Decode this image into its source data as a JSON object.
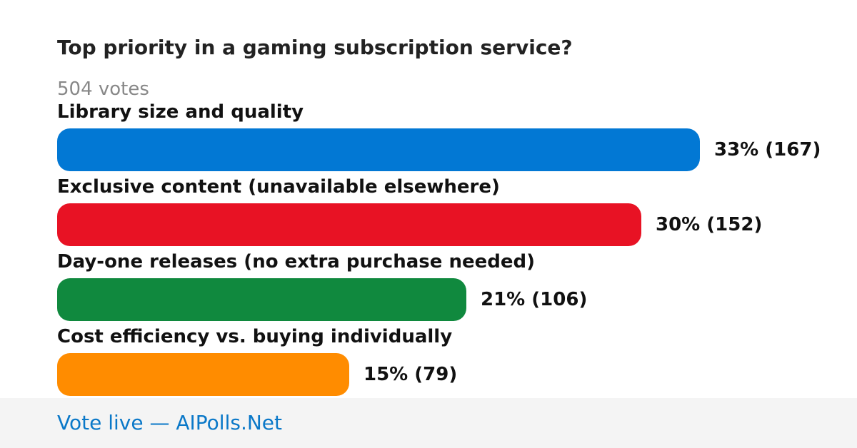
{
  "poll": {
    "title": "Top priority in a gaming subscription service?",
    "votes_label": "504 votes"
  },
  "chart_data": {
    "type": "bar",
    "orientation": "horizontal",
    "title": "Top priority in a gaming subscription service?",
    "total_votes": 504,
    "xlim": [
      0,
      33
    ],
    "categories": [
      "Library size and quality",
      "Exclusive content (unavailable elsewhere)",
      "Day-one releases (no extra purchase needed)",
      "Cost efficiency vs. buying individually"
    ],
    "values": [
      33,
      30,
      21,
      15
    ],
    "counts": [
      167,
      152,
      106,
      79
    ],
    "value_labels": [
      "33% (167)",
      "30% (152)",
      "21% (106)",
      "15% (79)"
    ],
    "colors": [
      "#0278d4",
      "#e81224",
      "#10893e",
      "#ff8c00"
    ]
  },
  "footer": {
    "link_text": "Vote live — AIPolls.Net"
  }
}
